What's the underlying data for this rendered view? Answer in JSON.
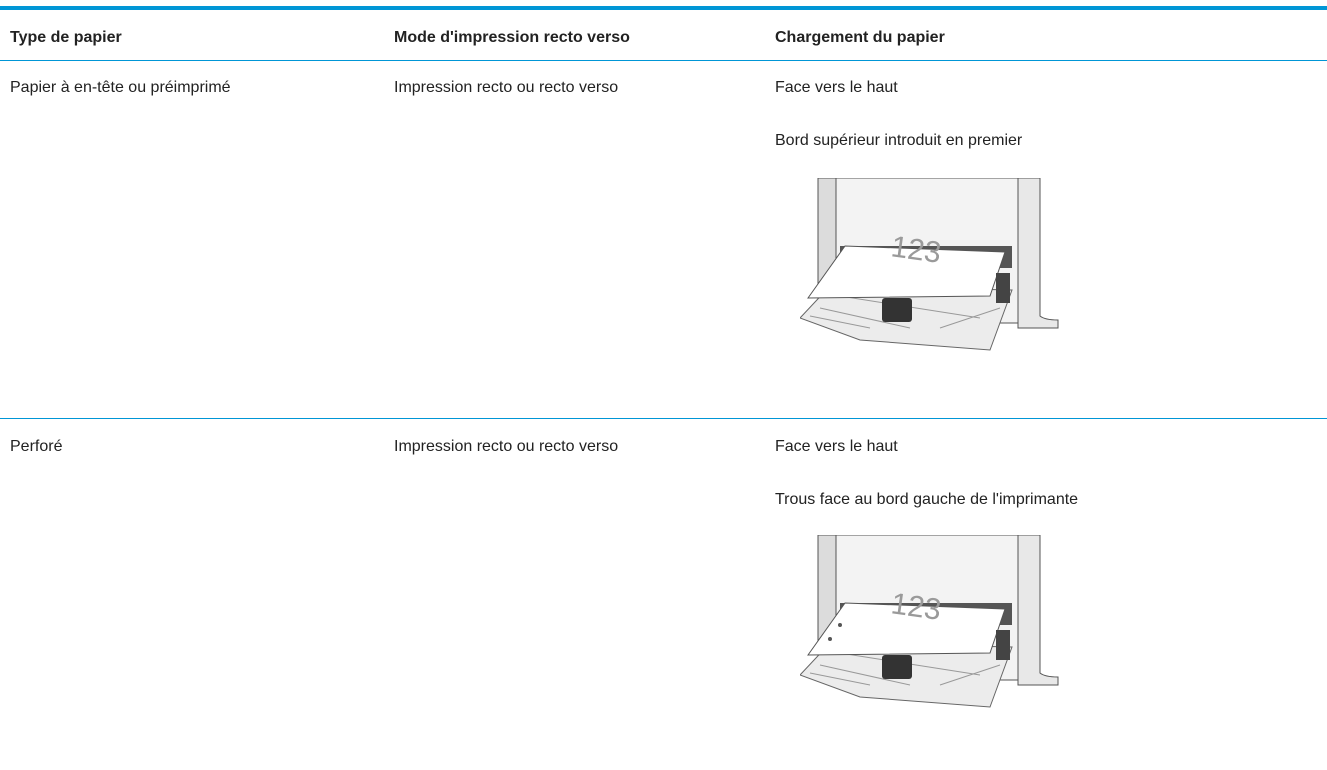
{
  "table": {
    "header": [
      "Type de papier",
      "Mode d'impression recto verso",
      "Chargement du papier"
    ],
    "rows": [
      {
        "paper_type": "Papier à en-tête ou préimprimé",
        "print_mode": "Impression recto ou recto verso",
        "loading": [
          "Face vers le haut",
          "Bord supérieur introduit en premier"
        ],
        "illustration_text": "123"
      },
      {
        "paper_type": "Perforé",
        "print_mode": "Impression recto ou recto verso",
        "loading": [
          "Face vers le haut",
          "Trous face au bord gauche de l'imprimante"
        ],
        "illustration_text": "123"
      }
    ]
  }
}
